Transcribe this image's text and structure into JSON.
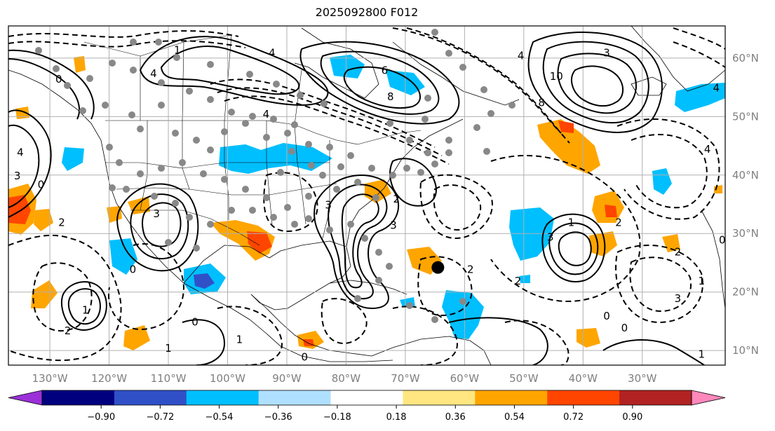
{
  "title": "2025092800 F012",
  "map_extent": {
    "lon_min": -137,
    "lon_max": -16,
    "lat_min": 7.5,
    "lat_max": 65.5
  },
  "latitude_labels": [
    {
      "lat": 60,
      "text": "60°N"
    },
    {
      "lat": 50,
      "text": "50°N"
    },
    {
      "lat": 40,
      "text": "40°N"
    },
    {
      "lat": 30,
      "text": "30°N"
    },
    {
      "lat": 20,
      "text": "20°N"
    },
    {
      "lat": 10,
      "text": "10°N"
    }
  ],
  "longitude_labels": [
    {
      "lon": -130,
      "text": "130°W"
    },
    {
      "lon": -120,
      "text": "120°W"
    },
    {
      "lon": -110,
      "text": "110°W"
    },
    {
      "lon": -100,
      "text": "100°W"
    },
    {
      "lon": -90,
      "text": "90°W"
    },
    {
      "lon": -80,
      "text": "80°W"
    },
    {
      "lon": -70,
      "text": "70°W"
    },
    {
      "lon": -60,
      "text": "60°W"
    },
    {
      "lon": -50,
      "text": "50°W"
    },
    {
      "lon": -40,
      "text": "40°W"
    },
    {
      "lon": -30,
      "text": "30°W"
    }
  ],
  "colorbar": {
    "colors": [
      "#9b30d9",
      "#00007f",
      "#3050c8",
      "#00bfff",
      "#b0e0ff",
      "#ffffff",
      "#ffe680",
      "#ffa500",
      "#ff4500",
      "#b22222",
      "#ff88bb"
    ],
    "under_color": "#9b30d9",
    "over_color": "#ff88bb",
    "ticks": [
      "−0.90",
      "−0.72",
      "−0.54",
      "−0.36",
      "−0.18",
      "0.18",
      "0.36",
      "0.54",
      "0.72",
      "0.90"
    ]
  },
  "contour_labels": [
    {
      "lon": -128.5,
      "lat": 56.5,
      "text": "0"
    },
    {
      "lon": -108.5,
      "lat": 61.5,
      "text": "1"
    },
    {
      "lon": -112.5,
      "lat": 57.5,
      "text": "4"
    },
    {
      "lon": -92.5,
      "lat": 61,
      "text": "4"
    },
    {
      "lon": -93.5,
      "lat": 50.5,
      "text": "4"
    },
    {
      "lon": -73.5,
      "lat": 58,
      "text": "6"
    },
    {
      "lon": -72.5,
      "lat": 53.5,
      "text": "8"
    },
    {
      "lon": -50.5,
      "lat": 60.5,
      "text": "4"
    },
    {
      "lon": -44.5,
      "lat": 57,
      "text": "10"
    },
    {
      "lon": -47,
      "lat": 52.5,
      "text": "8"
    },
    {
      "lon": -36,
      "lat": 61,
      "text": "3"
    },
    {
      "lon": -135,
      "lat": 44,
      "text": "4"
    },
    {
      "lon": -135.5,
      "lat": 40,
      "text": "3"
    },
    {
      "lon": -131.5,
      "lat": 38.5,
      "text": "0"
    },
    {
      "lon": -128,
      "lat": 32,
      "text": "2"
    },
    {
      "lon": -112,
      "lat": 33.5,
      "text": "3"
    },
    {
      "lon": -116,
      "lat": 24,
      "text": "0"
    },
    {
      "lon": -127,
      "lat": 13.5,
      "text": "2"
    },
    {
      "lon": -124,
      "lat": 17,
      "text": "1"
    },
    {
      "lon": -105.5,
      "lat": 15,
      "text": "0"
    },
    {
      "lon": -110,
      "lat": 10.5,
      "text": "1"
    },
    {
      "lon": -98,
      "lat": 12,
      "text": "1"
    },
    {
      "lon": -87,
      "lat": 9,
      "text": "0"
    },
    {
      "lon": -83,
      "lat": 35,
      "text": "3"
    },
    {
      "lon": -72,
      "lat": 31.5,
      "text": "3"
    },
    {
      "lon": -71.5,
      "lat": 36,
      "text": "2"
    },
    {
      "lon": -59,
      "lat": 24,
      "text": "2"
    },
    {
      "lon": -51,
      "lat": 22,
      "text": "2"
    },
    {
      "lon": -45.5,
      "lat": 29.5,
      "text": "3"
    },
    {
      "lon": -42,
      "lat": 32,
      "text": "1"
    },
    {
      "lon": -34,
      "lat": 32,
      "text": "2"
    },
    {
      "lon": -24,
      "lat": 27,
      "text": "2"
    },
    {
      "lon": -20,
      "lat": 22,
      "text": "1"
    },
    {
      "lon": -24,
      "lat": 19,
      "text": "3"
    },
    {
      "lon": -33,
      "lat": 14,
      "text": "0"
    },
    {
      "lon": -20,
      "lat": 9.5,
      "text": "1"
    },
    {
      "lon": -36,
      "lat": 16,
      "text": "0"
    },
    {
      "lon": -19,
      "lat": 44.5,
      "text": "4"
    },
    {
      "lon": -16.5,
      "lat": 29,
      "text": "0"
    },
    {
      "lon": -17.5,
      "lat": 55,
      "text": "4"
    }
  ],
  "tropical_marker": {
    "lon": -64.5,
    "lat": 24.2
  }
}
